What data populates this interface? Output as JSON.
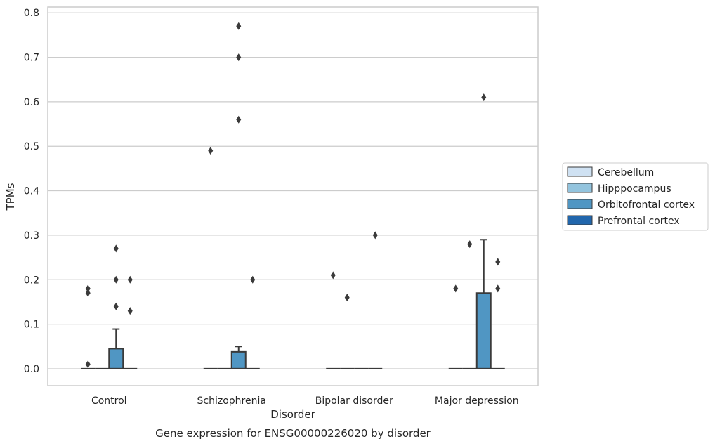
{
  "chart_data": {
    "type": "box",
    "title": "",
    "caption": "Gene expression for ENSG00000226020 by disorder",
    "xlabel": "Disorder",
    "ylabel": "TPMs",
    "ylim": [
      -0.038,
      0.813
    ],
    "yticks": [
      0.0,
      0.1,
      0.2,
      0.3,
      0.4,
      0.5,
      0.6,
      0.7,
      0.8
    ],
    "ytick_labels": [
      "0.0",
      "0.1",
      "0.2",
      "0.3",
      "0.4",
      "0.5",
      "0.6",
      "0.7",
      "0.8"
    ],
    "grid": "horizontal",
    "legend_placement": "center-right outside",
    "categories": [
      "Control",
      "Schizophrenia",
      "Bipolar disorder",
      "Major depression"
    ],
    "series": [
      {
        "name": "Cerebellum",
        "color": "#cfe1f2",
        "boxes": [
          {
            "q1": 0,
            "median": 0,
            "q3": 0,
            "whisker_low": 0,
            "whisker_high": 0,
            "outliers": [
              0.18,
              0.17,
              0.01
            ]
          },
          {
            "q1": 0,
            "median": 0,
            "q3": 0,
            "whisker_low": 0,
            "whisker_high": 0,
            "outliers": [
              0.49
            ]
          },
          {
            "q1": 0,
            "median": 0,
            "q3": 0,
            "whisker_low": 0,
            "whisker_high": 0,
            "outliers": [
              0.21
            ]
          },
          {
            "q1": 0,
            "median": 0,
            "q3": 0,
            "whisker_low": 0,
            "whisker_high": 0,
            "outliers": [
              0.18
            ]
          }
        ]
      },
      {
        "name": "Hipppocampus",
        "color": "#93c4de",
        "boxes": [
          {
            "q1": 0,
            "median": 0,
            "q3": 0,
            "whisker_low": 0,
            "whisker_high": 0,
            "outliers": []
          },
          {
            "q1": 0,
            "median": 0,
            "q3": 0,
            "whisker_low": 0,
            "whisker_high": 0,
            "outliers": []
          },
          {
            "q1": 0,
            "median": 0,
            "q3": 0,
            "whisker_low": 0,
            "whisker_high": 0,
            "outliers": [
              0.16
            ]
          },
          {
            "q1": 0,
            "median": 0,
            "q3": 0,
            "whisker_low": 0,
            "whisker_high": 0,
            "outliers": [
              0.28
            ]
          }
        ]
      },
      {
        "name": "Orbitofrontal cortex",
        "color": "#5096c3",
        "boxes": [
          {
            "q1": 0,
            "median": 0,
            "q3": 0.045,
            "whisker_low": 0,
            "whisker_high": 0.089,
            "outliers": [
              0.27,
              0.2,
              0.14
            ]
          },
          {
            "q1": 0,
            "median": 0,
            "q3": 0.038,
            "whisker_low": 0,
            "whisker_high": 0.05,
            "outliers": [
              0.77,
              0.7,
              0.56
            ]
          },
          {
            "q1": 0,
            "median": 0,
            "q3": 0,
            "whisker_low": 0,
            "whisker_high": 0,
            "outliers": []
          },
          {
            "q1": 0,
            "median": 0,
            "q3": 0.17,
            "whisker_low": 0,
            "whisker_high": 0.29,
            "outliers": [
              0.61
            ]
          }
        ]
      },
      {
        "name": "Prefrontal cortex",
        "color": "#2166ac",
        "boxes": [
          {
            "q1": 0,
            "median": 0,
            "q3": 0,
            "whisker_low": 0,
            "whisker_high": 0,
            "outliers": [
              0.2,
              0.13
            ]
          },
          {
            "q1": 0,
            "median": 0,
            "q3": 0,
            "whisker_low": 0,
            "whisker_high": 0,
            "outliers": [
              0.2
            ]
          },
          {
            "q1": 0,
            "median": 0,
            "q3": 0,
            "whisker_low": 0,
            "whisker_high": 0,
            "outliers": [
              0.3
            ]
          },
          {
            "q1": 0,
            "median": 0,
            "q3": 0,
            "whisker_low": 0,
            "whisker_high": 0,
            "outliers": [
              0.24,
              0.18
            ]
          }
        ]
      }
    ]
  }
}
